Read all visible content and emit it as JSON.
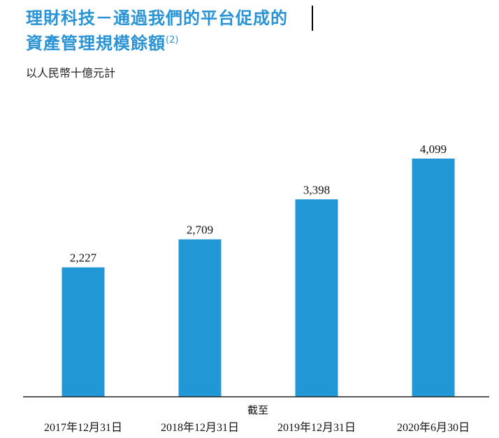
{
  "title": {
    "line1": "理財科技－通過我們的平台促成的",
    "line2": "資產管理規模餘額",
    "note": "(2)"
  },
  "unit_label": "以人民幣十億元計",
  "chart_data": {
    "type": "bar",
    "categories": [
      "2017年12月31日",
      "2018年12月31日",
      "2019年12月31日",
      "2020年6月30日"
    ],
    "values": [
      2227,
      2709,
      3398,
      4099
    ],
    "value_labels": [
      "2,227",
      "2,709",
      "3,398",
      "4,099"
    ],
    "xlabel": "截至",
    "ylabel": "",
    "ylim": [
      0,
      4600
    ],
    "bar_color": "#2197d6",
    "grid": false
  }
}
